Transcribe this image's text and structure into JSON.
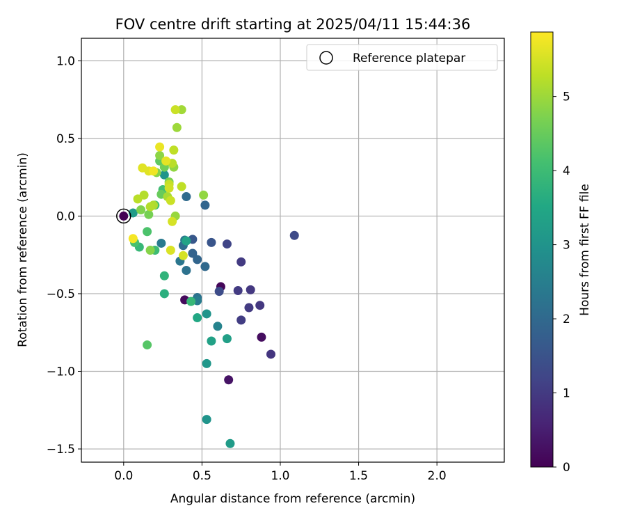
{
  "chart_data": {
    "type": "scatter",
    "title": "FOV centre drift starting at 2025/04/11 15:44:36",
    "xlabel": "Angular distance from reference (arcmin)",
    "ylabel": "Rotation from reference (arcmin)",
    "xlim": [
      -0.27,
      2.43
    ],
    "ylim": [
      -1.585,
      1.145
    ],
    "xticks": [
      0.0,
      0.5,
      1.0,
      1.5,
      2.0
    ],
    "xtick_labels": [
      "0.0",
      "0.5",
      "1.0",
      "1.5",
      "2.0"
    ],
    "yticks": [
      1.0,
      0.5,
      0.0,
      -0.5,
      -1.0,
      -1.5
    ],
    "ytick_labels": [
      "1.0",
      "0.5",
      "0.0",
      "−0.5",
      "−1.0",
      "−1.5"
    ],
    "grid": true,
    "legend": {
      "position": "top-right",
      "entries": [
        "Reference platepar"
      ]
    },
    "colorbar": {
      "label": "Hours from first FF file",
      "colormap": "viridis",
      "range": [
        0,
        5.87
      ],
      "ticks": [
        0,
        1,
        2,
        3,
        4,
        5
      ],
      "tick_labels": [
        "0",
        "1",
        "2",
        "3",
        "4",
        "5"
      ]
    },
    "reference_point": {
      "x": 0.0,
      "y": 0.0,
      "hours": 0.0
    },
    "points": [
      {
        "x": 0.0,
        "y": 0.0,
        "hours": 0.0
      },
      {
        "x": 0.62,
        "y": -0.455,
        "hours": 0.1
      },
      {
        "x": 0.39,
        "y": -0.54,
        "hours": 0.15
      },
      {
        "x": 0.88,
        "y": -0.78,
        "hours": 0.2
      },
      {
        "x": 0.67,
        "y": -1.055,
        "hours": 0.3
      },
      {
        "x": 0.94,
        "y": -0.89,
        "hours": 0.9
      },
      {
        "x": 0.87,
        "y": -0.575,
        "hours": 0.95
      },
      {
        "x": 0.8,
        "y": -0.59,
        "hours": 1.0
      },
      {
        "x": 0.75,
        "y": -0.67,
        "hours": 1.05
      },
      {
        "x": 0.73,
        "y": -0.48,
        "hours": 1.0
      },
      {
        "x": 0.81,
        "y": -0.475,
        "hours": 0.95
      },
      {
        "x": 0.75,
        "y": -0.295,
        "hours": 1.0
      },
      {
        "x": 0.66,
        "y": -0.18,
        "hours": 1.2
      },
      {
        "x": 1.09,
        "y": -0.125,
        "hours": 1.3
      },
      {
        "x": 0.61,
        "y": -0.485,
        "hours": 1.35
      },
      {
        "x": 0.56,
        "y": -0.17,
        "hours": 1.55
      },
      {
        "x": 0.44,
        "y": -0.15,
        "hours": 1.6
      },
      {
        "x": 0.52,
        "y": 0.07,
        "hours": 1.9
      },
      {
        "x": 0.4,
        "y": 0.125,
        "hours": 2.05
      },
      {
        "x": 0.47,
        "y": -0.28,
        "hours": 1.9
      },
      {
        "x": 0.44,
        "y": -0.24,
        "hours": 1.85
      },
      {
        "x": 0.52,
        "y": -0.325,
        "hours": 2.0
      },
      {
        "x": 0.47,
        "y": -0.525,
        "hours": 2.2
      },
      {
        "x": 0.4,
        "y": -0.35,
        "hours": 2.2
      },
      {
        "x": 0.36,
        "y": -0.29,
        "hours": 2.3
      },
      {
        "x": 0.38,
        "y": -0.19,
        "hours": 2.1
      },
      {
        "x": 0.39,
        "y": -0.155,
        "hours": 2.35
      },
      {
        "x": 0.24,
        "y": -0.175,
        "hours": 2.4
      },
      {
        "x": 0.47,
        "y": -0.545,
        "hours": 2.45
      },
      {
        "x": 0.6,
        "y": -0.71,
        "hours": 2.6
      },
      {
        "x": 0.53,
        "y": -0.63,
        "hours": 3.0
      },
      {
        "x": 0.53,
        "y": -0.95,
        "hours": 3.1
      },
      {
        "x": 0.53,
        "y": -1.31,
        "hours": 3.0
      },
      {
        "x": 0.68,
        "y": -1.465,
        "hours": 3.2
      },
      {
        "x": 0.66,
        "y": -0.79,
        "hours": 3.3
      },
      {
        "x": 0.56,
        "y": -0.805,
        "hours": 3.35
      },
      {
        "x": 0.47,
        "y": -0.655,
        "hours": 3.5
      },
      {
        "x": 0.06,
        "y": 0.02,
        "hours": 3.2
      },
      {
        "x": 0.26,
        "y": 0.265,
        "hours": 3.0
      },
      {
        "x": 0.4,
        "y": -0.16,
        "hours": 3.4
      },
      {
        "x": 0.26,
        "y": -0.5,
        "hours": 3.7
      },
      {
        "x": 0.26,
        "y": -0.385,
        "hours": 3.8
      },
      {
        "x": 0.43,
        "y": -0.55,
        "hours": 3.9
      },
      {
        "x": 0.1,
        "y": -0.2,
        "hours": 3.9
      },
      {
        "x": 0.2,
        "y": -0.22,
        "hours": 4.0
      },
      {
        "x": 0.25,
        "y": 0.17,
        "hours": 4.05
      },
      {
        "x": 0.2,
        "y": 0.07,
        "hours": 4.1
      },
      {
        "x": 0.15,
        "y": -0.1,
        "hours": 4.2
      },
      {
        "x": 0.07,
        "y": -0.17,
        "hours": 4.15
      },
      {
        "x": 0.15,
        "y": -0.83,
        "hours": 4.3
      },
      {
        "x": 0.23,
        "y": 0.355,
        "hours": 4.4
      },
      {
        "x": 0.24,
        "y": 0.14,
        "hours": 4.5
      },
      {
        "x": 0.26,
        "y": 0.315,
        "hours": 4.6
      },
      {
        "x": 0.29,
        "y": 0.22,
        "hours": 4.7
      },
      {
        "x": 0.16,
        "y": 0.01,
        "hours": 4.65
      },
      {
        "x": 0.11,
        "y": 0.04,
        "hours": 4.75
      },
      {
        "x": 0.17,
        "y": -0.22,
        "hours": 4.8
      },
      {
        "x": 0.21,
        "y": 0.28,
        "hours": 4.8
      },
      {
        "x": 0.23,
        "y": 0.39,
        "hours": 4.85
      },
      {
        "x": 0.32,
        "y": 0.315,
        "hours": 4.9
      },
      {
        "x": 0.33,
        "y": 0.0,
        "hours": 4.95
      },
      {
        "x": 0.51,
        "y": 0.135,
        "hours": 4.9
      },
      {
        "x": 0.34,
        "y": 0.57,
        "hours": 5.0
      },
      {
        "x": 0.37,
        "y": 0.685,
        "hours": 5.05
      },
      {
        "x": 0.28,
        "y": 0.125,
        "hours": 5.1
      },
      {
        "x": 0.19,
        "y": 0.07,
        "hours": 5.15
      },
      {
        "x": 0.13,
        "y": 0.135,
        "hours": 5.2
      },
      {
        "x": 0.09,
        "y": 0.11,
        "hours": 5.25
      },
      {
        "x": 0.17,
        "y": 0.06,
        "hours": 5.2
      },
      {
        "x": 0.31,
        "y": 0.34,
        "hours": 5.25
      },
      {
        "x": 0.32,
        "y": 0.425,
        "hours": 5.3
      },
      {
        "x": 0.37,
        "y": 0.19,
        "hours": 5.3
      },
      {
        "x": 0.29,
        "y": 0.205,
        "hours": 5.35
      },
      {
        "x": 0.33,
        "y": 0.685,
        "hours": 5.4
      },
      {
        "x": 0.3,
        "y": 0.1,
        "hours": 5.4
      },
      {
        "x": 0.29,
        "y": 0.18,
        "hours": 5.45
      },
      {
        "x": 0.31,
        "y": -0.035,
        "hours": 5.5
      },
      {
        "x": 0.38,
        "y": -0.255,
        "hours": 5.5
      },
      {
        "x": 0.3,
        "y": -0.22,
        "hours": 5.55
      },
      {
        "x": 0.12,
        "y": 0.31,
        "hours": 5.6
      },
      {
        "x": 0.16,
        "y": 0.29,
        "hours": 5.6
      },
      {
        "x": 0.27,
        "y": 0.355,
        "hours": 5.65
      },
      {
        "x": 0.23,
        "y": 0.445,
        "hours": 5.7
      },
      {
        "x": 0.19,
        "y": 0.29,
        "hours": 5.75
      },
      {
        "x": 0.06,
        "y": -0.145,
        "hours": 5.8
      }
    ]
  }
}
